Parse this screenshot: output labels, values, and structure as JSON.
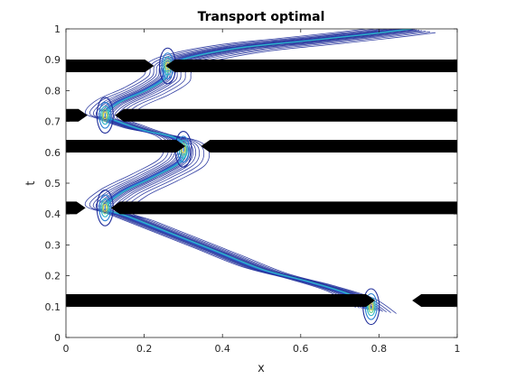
{
  "chart_data": {
    "type": "contour",
    "title": "Transport optimal",
    "xlabel": "x",
    "ylabel": "t",
    "xlim": [
      0,
      1
    ],
    "ylim": [
      0,
      1
    ],
    "grid": false,
    "xticks": [
      "0",
      "0.2",
      "0.4",
      "0.6",
      "0.8",
      "1"
    ],
    "yticks": [
      "0",
      "0.1",
      "0.2",
      "0.3",
      "0.4",
      "0.5",
      "0.6",
      "0.7",
      "0.8",
      "0.9",
      "1"
    ],
    "obstacles": [
      {
        "t": 0.12,
        "segments": [
          [
            0.0,
            0.79
          ],
          [
            0.885,
            1.0
          ]
        ]
      },
      {
        "t": 0.42,
        "segments": [
          [
            0.0,
            0.05
          ],
          [
            0.115,
            1.0
          ]
        ]
      },
      {
        "t": 0.62,
        "segments": [
          [
            0.0,
            0.305
          ],
          [
            0.345,
            1.0
          ]
        ]
      },
      {
        "t": 0.72,
        "segments": [
          [
            0.0,
            0.055
          ],
          [
            0.125,
            1.0
          ]
        ]
      },
      {
        "t": 0.88,
        "segments": [
          [
            0.0,
            0.225
          ],
          [
            0.255,
            1.0
          ]
        ]
      }
    ],
    "path": {
      "x": [
        0.78,
        0.72,
        0.62,
        0.5,
        0.38,
        0.26,
        0.16,
        0.1,
        0.14,
        0.22,
        0.29,
        0.3,
        0.27,
        0.2,
        0.13,
        0.1,
        0.13,
        0.2,
        0.25,
        0.26,
        0.32,
        0.45,
        0.6,
        0.75,
        0.88
      ],
      "t": [
        0.09,
        0.14,
        0.18,
        0.22,
        0.28,
        0.34,
        0.39,
        0.42,
        0.47,
        0.52,
        0.57,
        0.62,
        0.65,
        0.67,
        0.7,
        0.72,
        0.76,
        0.8,
        0.84,
        0.88,
        0.91,
        0.94,
        0.96,
        0.98,
        1.0
      ]
    },
    "colormap": [
      "#1f2d9a",
      "#2c4fc2",
      "#2a7fd4",
      "#2fb8c8",
      "#6fd08c",
      "#e8d94a"
    ]
  }
}
